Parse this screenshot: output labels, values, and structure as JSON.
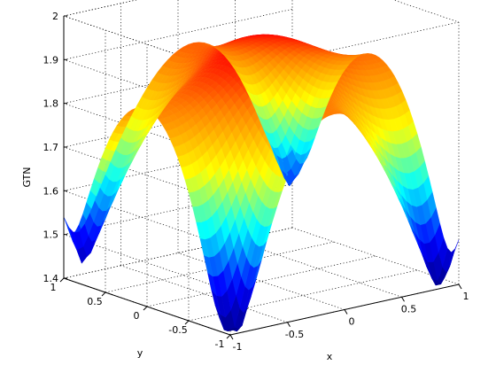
{
  "chart_data": {
    "type": "surface3d",
    "title": "",
    "xlabel": "x",
    "ylabel": "y",
    "zlabel": "GTN",
    "xlim": [
      -1,
      1
    ],
    "ylim": [
      -1,
      1
    ],
    "zlim": [
      1.4,
      2.0
    ],
    "x_ticks": [
      "-1",
      "-0.5",
      "0",
      "0.5",
      "1"
    ],
    "y_ticks": [
      "-1",
      "-0.5",
      "0",
      "0.5",
      "1"
    ],
    "z_ticks": [
      "1.4",
      "1.5",
      "1.6",
      "1.7",
      "1.8",
      "1.9",
      "2"
    ],
    "grid": true,
    "colormap": "jet",
    "surface_shape": "plateau at GTN ≈ 1.93-2.0 with four deep wells near the corners (x, y) = (±0.9, ±0.9) dropping to about 1.4; ridge peaks near 2.0 midway along the edges",
    "series": [
      {
        "values": [
          {
            "x": -0.9,
            "y": -0.9,
            "z": 1.4
          },
          {
            "x": 0.9,
            "y": -0.9,
            "z": 1.45
          },
          {
            "x": 0.9,
            "y": 0.9,
            "z": 1.55
          },
          {
            "x": -0.9,
            "y": 0.9,
            "z": 1.5
          },
          {
            "x": 0,
            "y": 0,
            "z": 1.93
          },
          {
            "x": 0,
            "y": 1,
            "z": 2.0
          },
          {
            "x": 1,
            "y": 0,
            "z": 1.98
          },
          {
            "x": -1,
            "y": 0,
            "z": 1.95
          },
          {
            "x": 0,
            "y": -1,
            "z": 1.97
          }
        ]
      }
    ]
  }
}
